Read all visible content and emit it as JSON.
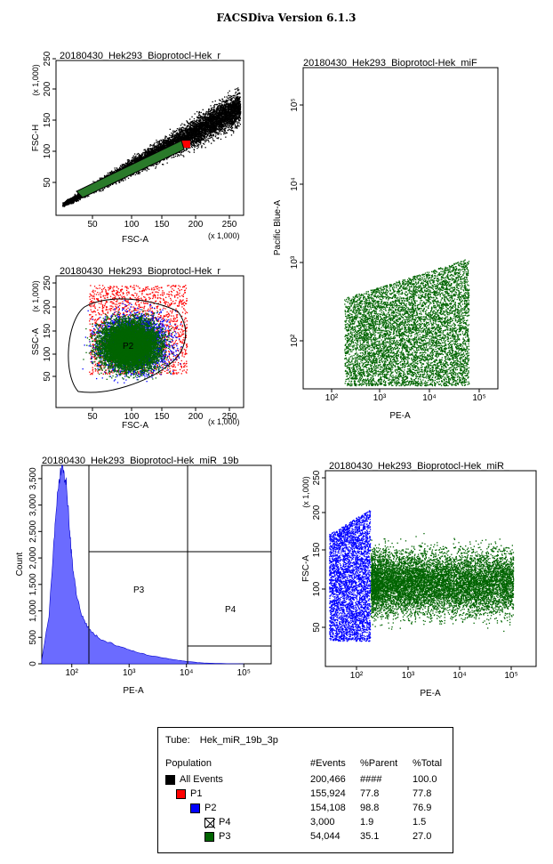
{
  "app_title": "FACSDiva Version 6.1.3",
  "colors": {
    "p1": "#ff0000",
    "p2": "#0000ff",
    "p3": "#006400",
    "events": "#000000",
    "hist": "#6b6bff"
  },
  "plots": [
    {
      "title": "20180430_Hek293_Bioprotocl-Hek_r",
      "xlabel": "FSC-A",
      "ylabel": "FSC-H",
      "x_multiplier": "(x 1,000)",
      "y_multiplier": "(x 1,000)",
      "x_ticks": [
        "50",
        "100",
        "150",
        "200",
        "250"
      ],
      "y_ticks": [
        "50",
        "100",
        "150",
        "200",
        "250"
      ],
      "gate": "P1"
    },
    {
      "title": "20180430_Hek293_Bioprotocl-Hek_miF",
      "xlabel": "PE-A",
      "ylabel": "Pacific Blue-A",
      "x_ticks": [
        "10²",
        "10³",
        "10⁴",
        "10⁵"
      ],
      "y_ticks": [
        "10²",
        "10³",
        "10⁴",
        "10⁵"
      ]
    },
    {
      "title": "20180430_Hek293_Bioprotocl-Hek_r",
      "xlabel": "FSC-A",
      "ylabel": "SSC-A",
      "x_multiplier": "(x 1,000)",
      "y_multiplier": "(x 1,000)",
      "x_ticks": [
        "50",
        "100",
        "150",
        "200",
        "250"
      ],
      "y_ticks": [
        "50",
        "100",
        "150",
        "200",
        "250"
      ],
      "gate": "P2"
    },
    {
      "title": "20180430_Hek293_Bioprotocl-Hek_miR_19b",
      "xlabel": "PE-A",
      "ylabel": "Count",
      "x_ticks": [
        "10²",
        "10³",
        "10⁴",
        "10⁵"
      ],
      "y_ticks": [
        "0",
        "500",
        "1,000",
        "1,500",
        "2,000",
        "2,500",
        "3,000",
        "3,500"
      ],
      "gates": [
        "P3",
        "P4"
      ]
    },
    {
      "title": "20180430_Hek293_Bioprotocl-Hek_miR_",
      "xlabel": "PE-A",
      "ylabel": "FSC-A",
      "y_multiplier": "(x 1,000)",
      "x_ticks": [
        "10²",
        "10³",
        "10⁴",
        "10⁵"
      ],
      "y_ticks": [
        "50",
        "100",
        "150",
        "200",
        "250"
      ]
    }
  ],
  "chart_data": [
    {
      "type": "scatter",
      "title": "20180430_Hek293_Bioprotocl-Hek_r",
      "xlabel": "FSC-A (x 1,000)",
      "ylabel": "FSC-H (x 1,000)",
      "xlim": [
        0,
        262
      ],
      "ylim": [
        0,
        262
      ],
      "gate": "P1",
      "gate_polygon": [
        [
          20,
          50
        ],
        [
          30,
          40
        ],
        [
          185,
          118
        ],
        [
          180,
          125
        ]
      ]
    },
    {
      "type": "scatter",
      "title": "20180430_Hek293_Bioprotocl-Hek_miF",
      "xlabel": "PE-A",
      "ylabel": "Pacific Blue-A",
      "xscale": "log",
      "yscale": "log",
      "xlim": [
        30,
        300000
      ],
      "ylim": [
        30,
        300000
      ],
      "population": "P3"
    },
    {
      "type": "scatter",
      "title": "20180430_Hek293_Bioprotocl-Hek_r",
      "xlabel": "FSC-A (x 1,000)",
      "ylabel": "SSC-A (x 1,000)",
      "xlim": [
        0,
        262
      ],
      "ylim": [
        0,
        262
      ],
      "gate": "P2"
    },
    {
      "type": "area",
      "title": "20180430_Hek293_Bioprotocl-Hek_miR_19b",
      "xlabel": "PE-A",
      "ylabel": "Count",
      "xscale": "log",
      "xlim": [
        30,
        300000
      ],
      "ylim": [
        0,
        3750
      ],
      "x": [
        30,
        40,
        50,
        60,
        70,
        80,
        90,
        100,
        120,
        150,
        200,
        300,
        500,
        1000,
        2000,
        5000,
        10000,
        20000,
        50000,
        100000
      ],
      "values": [
        80,
        900,
        2500,
        3500,
        3700,
        3400,
        2700,
        2000,
        1300,
        900,
        650,
        480,
        380,
        260,
        170,
        90,
        45,
        15,
        3,
        0
      ],
      "gates": [
        {
          "name": "P3",
          "range": [
            200,
            10000
          ]
        },
        {
          "name": "P4",
          "range": [
            10000,
            300000
          ]
        }
      ]
    },
    {
      "type": "scatter",
      "title": "20180430_Hek293_Bioprotocl-Hek_miR_",
      "xlabel": "PE-A",
      "ylabel": "FSC-A (x 1,000)",
      "xscale": "log",
      "xlim": [
        30,
        300000
      ],
      "ylim": [
        0,
        262
      ],
      "series": [
        {
          "name": "P2",
          "x_range": [
            30,
            200
          ]
        },
        {
          "name": "P3",
          "x_range": [
            200,
            60000
          ]
        }
      ]
    }
  ],
  "stats": {
    "tube_label": "Tube:",
    "tube_name": "Hek_miR_19b_3p",
    "headers": {
      "population": "Population",
      "events": "#Events",
      "parent": "%Parent",
      "total": "%Total"
    },
    "rows": [
      {
        "name": "All Events",
        "events": "200,466",
        "parent": "####",
        "total": "100.0",
        "color": "#000000"
      },
      {
        "name": "P1",
        "events": "155,924",
        "parent": "77.8",
        "total": "77.8",
        "color": "#ff0000"
      },
      {
        "name": "P2",
        "events": "154,108",
        "parent": "98.8",
        "total": "76.9",
        "color": "#0000ff"
      },
      {
        "name": "P4",
        "events": "3,000",
        "parent": "1.9",
        "total": "1.5",
        "color": "none"
      },
      {
        "name": "P3",
        "events": "54,044",
        "parent": "35.1",
        "total": "27.0",
        "color": "#006400"
      }
    ]
  }
}
